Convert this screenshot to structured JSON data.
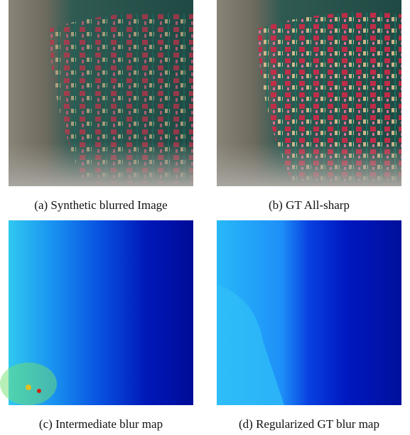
{
  "panels": [
    {
      "caption": "(a) Synthetic blurred Image"
    },
    {
      "caption": "(b) GT All-sharp"
    },
    {
      "caption": "(c) Intermediate blur map"
    },
    {
      "caption": "(d) Regularized GT blur map"
    }
  ]
}
